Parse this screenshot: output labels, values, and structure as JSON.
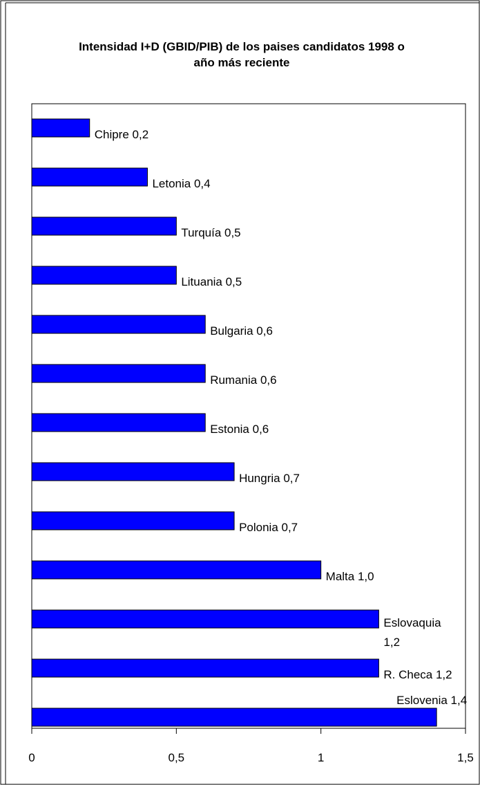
{
  "chart_data": {
    "type": "bar",
    "orientation": "horizontal",
    "title_lines": [
      "Intensidad I+D (GBID/PIB) de los paises candidatos 1998 o",
      "año más reciente"
    ],
    "categories": [
      "Chipre",
      "Letonia",
      "Turquía",
      "Lituania",
      "Bulgaria",
      "Rumania",
      "Estonia",
      "Hungria",
      "Polonia",
      "Malta",
      "Eslovaquia",
      "R. Checa",
      "Eslovenia"
    ],
    "values": [
      0.2,
      0.4,
      0.5,
      0.5,
      0.6,
      0.6,
      0.6,
      0.7,
      0.7,
      1.0,
      1.2,
      1.2,
      1.4
    ],
    "data_labels": [
      "Chipre 0,2",
      "Letonia 0,4",
      "Turquía 0,5",
      "Lituania 0,5",
      "Bulgaria 0,6",
      "Rumania 0,6",
      "Estonia 0,6",
      "Hungria 0,7",
      "Polonia 0,7",
      "Malta 1,0",
      [
        "Eslovaquia",
        "1,2"
      ],
      "R. Checa 1,2",
      "Eslovenia 1,4"
    ],
    "xlim": [
      0,
      1.5
    ],
    "x_ticks": [
      0,
      0.5,
      1,
      1.5
    ],
    "x_tick_labels": [
      "0",
      "0,5",
      "1",
      "1,5"
    ],
    "grid": false,
    "legend": "none",
    "bar_color": "#0000ff",
    "bar_stroke": "#000000"
  }
}
